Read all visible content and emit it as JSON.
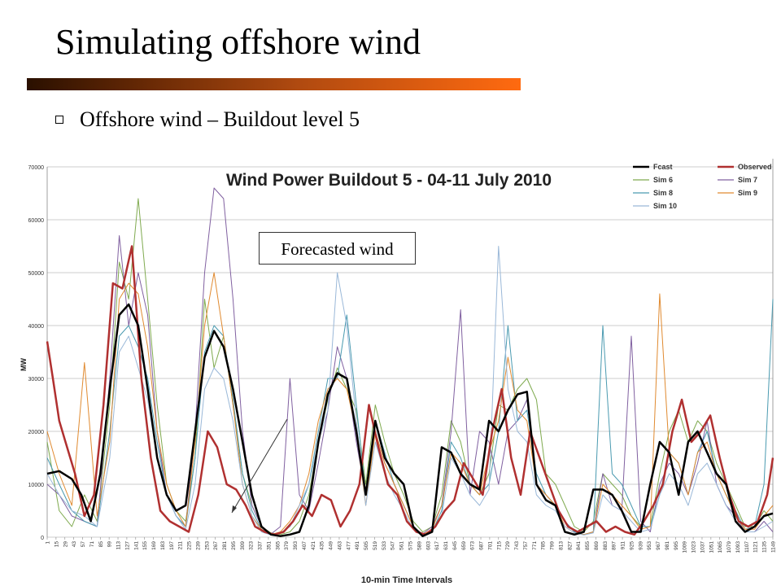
{
  "slide": {
    "title": "Simulating offshore wind",
    "bullet": "Offshore wind – Buildout level 5",
    "callout": "Forecasted wind"
  },
  "chart_data": {
    "type": "line",
    "title": "Wind Power Buildout 5 - 04-11 July 2010",
    "xlabel": "10-min Time Intervals",
    "ylabel": "MW",
    "ylim": [
      0,
      70000
    ],
    "yticks": [
      0,
      10000,
      20000,
      30000,
      40000,
      50000,
      60000,
      70000
    ],
    "xlim": [
      1,
      1149
    ],
    "x_tick_labels": [
      "1",
      "15",
      "29",
      "43",
      "57",
      "71",
      "85",
      "99",
      "113",
      "127",
      "141",
      "155",
      "169",
      "183",
      "197",
      "211",
      "225",
      "239",
      "253",
      "267",
      "281",
      "295",
      "309",
      "323",
      "337",
      "351",
      "365",
      "379",
      "393",
      "407",
      "421",
      "435",
      "449",
      "463",
      "477",
      "491",
      "505",
      "519",
      "533",
      "547",
      "561",
      "575",
      "589",
      "603",
      "617",
      "631",
      "645",
      "659",
      "673",
      "687",
      "701",
      "715",
      "729",
      "743",
      "757",
      "771",
      "785",
      "799",
      "813",
      "827",
      "841",
      "855",
      "869",
      "883",
      "897",
      "911",
      "925",
      "939",
      "953",
      "967",
      "981",
      "995",
      "1009",
      "1023",
      "1037",
      "1051",
      "1065",
      "1079",
      "1093",
      "1107",
      "1121",
      "1135",
      "1149"
    ],
    "grid": true,
    "legend_position": "top-right",
    "series": [
      {
        "name": "Fcast",
        "color": "#000000",
        "width": 2.5,
        "x": [
          1,
          20,
          40,
          55,
          70,
          85,
          100,
          115,
          130,
          145,
          160,
          175,
          190,
          205,
          220,
          235,
          250,
          265,
          280,
          295,
          310,
          325,
          340,
          355,
          370,
          385,
          400,
          415,
          430,
          445,
          460,
          475,
          490,
          505,
          520,
          535,
          550,
          565,
          580,
          595,
          610,
          625,
          640,
          655,
          670,
          685,
          700,
          715,
          730,
          745,
          760,
          775,
          790,
          805,
          820,
          835,
          850,
          865,
          880,
          895,
          910,
          925,
          940,
          955,
          970,
          985,
          1000,
          1015,
          1030,
          1045,
          1060,
          1075,
          1090,
          1105,
          1120,
          1135,
          1149
        ],
        "y": [
          12000,
          12500,
          11000,
          8000,
          3000,
          12000,
          28000,
          42000,
          44000,
          40000,
          28000,
          15000,
          8000,
          5000,
          6000,
          20000,
          34000,
          39000,
          36000,
          28000,
          18000,
          8000,
          2000,
          500,
          200,
          500,
          1000,
          6000,
          18000,
          27000,
          31000,
          30000,
          20000,
          8000,
          22000,
          15000,
          12000,
          10000,
          2000,
          200,
          1000,
          17000,
          16000,
          12000,
          10000,
          9000,
          22000,
          20000,
          24000,
          27000,
          27500,
          10000,
          7000,
          6000,
          1000,
          500,
          1000,
          9000,
          9000,
          8000,
          5000,
          1000,
          1000,
          10000,
          18000,
          16000,
          8000,
          18000,
          20000,
          16000,
          12000,
          10000,
          3000,
          1000,
          2000,
          4000,
          4500
        ]
      },
      {
        "name": "Observed",
        "color": "#b03030",
        "width": 2.5,
        "x": [
          1,
          10,
          20,
          30,
          45,
          60,
          75,
          90,
          105,
          120,
          135,
          150,
          165,
          180,
          195,
          210,
          225,
          240,
          255,
          270,
          285,
          300,
          315,
          330,
          345,
          360,
          375,
          390,
          405,
          420,
          435,
          450,
          465,
          480,
          495,
          510,
          525,
          540,
          555,
          570,
          585,
          600,
          615,
          630,
          645,
          660,
          675,
          690,
          705,
          720,
          735,
          750,
          765,
          780,
          795,
          810,
          825,
          840,
          855,
          870,
          885,
          900,
          915,
          930,
          945,
          960,
          975,
          990,
          1005,
          1020,
          1035,
          1050,
          1065,
          1080,
          1095,
          1110,
          1125,
          1140,
          1149
        ],
        "y": [
          37000,
          30000,
          22000,
          18000,
          12000,
          4000,
          8000,
          25000,
          48000,
          47000,
          55000,
          30000,
          15000,
          5000,
          3000,
          2000,
          1000,
          8000,
          20000,
          17000,
          10000,
          9000,
          6000,
          2000,
          1000,
          500,
          1000,
          3000,
          6000,
          4000,
          8000,
          7000,
          2000,
          5000,
          10000,
          25000,
          17000,
          10000,
          8000,
          3000,
          1000,
          500,
          2000,
          5000,
          7000,
          14000,
          11000,
          8000,
          20000,
          28000,
          15000,
          8000,
          20000,
          15000,
          10000,
          5000,
          2000,
          1000,
          2000,
          3000,
          1000,
          2000,
          1000,
          500,
          3000,
          6000,
          10000,
          20000,
          26000,
          18000,
          20000,
          23000,
          15000,
          8000,
          3000,
          2000,
          3000,
          8000,
          15000
        ]
      },
      {
        "name": "Sim 6",
        "color": "#7faa4f",
        "width": 1,
        "x": [
          1,
          20,
          40,
          60,
          80,
          100,
          115,
          130,
          145,
          160,
          175,
          190,
          205,
          220,
          235,
          250,
          265,
          280,
          295,
          310,
          325,
          340,
          355,
          370,
          385,
          400,
          415,
          430,
          445,
          460,
          475,
          490,
          505,
          520,
          535,
          550,
          565,
          580,
          595,
          610,
          625,
          640,
          655,
          670,
          685,
          700,
          715,
          730,
          745,
          760,
          775,
          790,
          805,
          820,
          835,
          850,
          865,
          880,
          895,
          910,
          925,
          940,
          955,
          970,
          985,
          1000,
          1015,
          1030,
          1045,
          1060,
          1075,
          1090,
          1105,
          1120,
          1135,
          1149
        ],
        "y": [
          18000,
          5000,
          2000,
          8000,
          3000,
          25000,
          52000,
          45000,
          64000,
          45000,
          25000,
          10000,
          5000,
          3000,
          15000,
          45000,
          32000,
          38000,
          25000,
          12000,
          6000,
          2000,
          800,
          500,
          1000,
          3000,
          8000,
          18000,
          26000,
          32000,
          28000,
          24000,
          10000,
          25000,
          18000,
          12000,
          8000,
          3000,
          1000,
          2000,
          8000,
          22000,
          18000,
          10000,
          8000,
          12000,
          25000,
          24000,
          28000,
          30000,
          26000,
          12000,
          10000,
          6000,
          2000,
          1000,
          3000,
          12000,
          10000,
          8000,
          4000,
          2000,
          2000,
          12000,
          20000,
          24000,
          18000,
          22000,
          20000,
          14000,
          10000,
          6000,
          2000,
          2000,
          5000,
          3000
        ]
      },
      {
        "name": "Sim 7",
        "color": "#8060a0",
        "width": 1,
        "x": [
          1,
          20,
          40,
          60,
          80,
          100,
          115,
          130,
          145,
          160,
          175,
          190,
          205,
          220,
          235,
          250,
          265,
          280,
          295,
          310,
          325,
          340,
          355,
          370,
          385,
          400,
          415,
          430,
          445,
          460,
          475,
          490,
          505,
          520,
          535,
          550,
          565,
          580,
          595,
          610,
          625,
          640,
          655,
          670,
          685,
          700,
          715,
          730,
          745,
          760,
          775,
          790,
          805,
          820,
          835,
          850,
          865,
          880,
          895,
          910,
          925,
          940,
          955,
          970,
          985,
          1000,
          1015,
          1030,
          1045,
          1060,
          1075,
          1090,
          1105,
          1120,
          1135,
          1149
        ],
        "y": [
          10000,
          8000,
          4000,
          3000,
          2000,
          30000,
          57000,
          40000,
          50000,
          42000,
          20000,
          8000,
          4000,
          2000,
          20000,
          50000,
          66000,
          64000,
          45000,
          20000,
          6000,
          2000,
          600,
          2000,
          30000,
          8000,
          5000,
          14000,
          24000,
          36000,
          30000,
          18000,
          8000,
          20000,
          14000,
          10000,
          6000,
          2000,
          600,
          2000,
          6000,
          20000,
          43000,
          8000,
          20000,
          18000,
          10000,
          20000,
          22000,
          26000,
          10000,
          8000,
          6000,
          3000,
          1000,
          500,
          1000,
          12000,
          6000,
          5000,
          38000,
          3000,
          1000,
          10000,
          14000,
          12000,
          8000,
          14000,
          22000,
          10000,
          6000,
          4000,
          1000,
          1000,
          3000,
          1000
        ]
      },
      {
        "name": "Sim 8",
        "color": "#4a9ab0",
        "width": 1,
        "x": [
          1,
          20,
          40,
          60,
          80,
          100,
          115,
          130,
          145,
          160,
          175,
          190,
          205,
          220,
          235,
          250,
          265,
          280,
          295,
          310,
          325,
          340,
          355,
          370,
          385,
          400,
          415,
          430,
          445,
          460,
          475,
          490,
          505,
          520,
          535,
          550,
          565,
          580,
          595,
          610,
          625,
          640,
          655,
          670,
          685,
          700,
          715,
          730,
          745,
          760,
          775,
          790,
          805,
          820,
          835,
          850,
          865,
          880,
          895,
          910,
          925,
          940,
          955,
          970,
          985,
          1000,
          1015,
          1030,
          1045,
          1060,
          1075,
          1090,
          1105,
          1120,
          1135,
          1149
        ],
        "y": [
          15000,
          10000,
          5000,
          3000,
          2000,
          20000,
          38000,
          40000,
          36000,
          30000,
          18000,
          8000,
          4000,
          2000,
          15000,
          35000,
          40000,
          38000,
          26000,
          12000,
          5000,
          1500,
          500,
          800,
          2000,
          5000,
          10000,
          20000,
          30000,
          30000,
          42000,
          25000,
          8000,
          22000,
          16000,
          10000,
          6000,
          2000,
          500,
          1000,
          5000,
          18000,
          15000,
          10000,
          8000,
          10000,
          20000,
          40000,
          22000,
          24000,
          12000,
          8000,
          6000,
          3000,
          1000,
          500,
          1000,
          40000,
          12000,
          10000,
          6000,
          2000,
          2000,
          8000,
          16000,
          14000,
          8000,
          16000,
          20000,
          12000,
          8000,
          5000,
          1500,
          2000,
          10000,
          45000
        ]
      },
      {
        "name": "Sim 9",
        "color": "#e08a30",
        "width": 1,
        "x": [
          1,
          20,
          40,
          60,
          80,
          100,
          115,
          130,
          145,
          160,
          175,
          190,
          205,
          220,
          235,
          250,
          265,
          280,
          295,
          310,
          325,
          340,
          355,
          370,
          385,
          400,
          415,
          430,
          445,
          460,
          475,
          490,
          505,
          520,
          535,
          550,
          565,
          580,
          595,
          610,
          625,
          640,
          655,
          670,
          685,
          700,
          715,
          730,
          745,
          760,
          775,
          790,
          805,
          820,
          835,
          850,
          865,
          880,
          895,
          910,
          925,
          940,
          955,
          970,
          985,
          1000,
          1015,
          1030,
          1045,
          1060,
          1075,
          1090,
          1105,
          1120,
          1135,
          1149
        ],
        "y": [
          20000,
          12000,
          6000,
          33000,
          4000,
          18000,
          45000,
          48000,
          46000,
          36000,
          20000,
          10000,
          5000,
          2000,
          18000,
          40000,
          50000,
          38000,
          25000,
          10000,
          4000,
          1500,
          500,
          1000,
          3000,
          6000,
          12000,
          22000,
          28000,
          30000,
          28000,
          20000,
          6000,
          20000,
          14000,
          10000,
          6000,
          2000,
          500,
          1500,
          6000,
          16000,
          14000,
          10000,
          8000,
          16000,
          22000,
          34000,
          24000,
          22000,
          10000,
          8000,
          6000,
          2000,
          800,
          500,
          1000,
          10000,
          8000,
          6000,
          4000,
          1500,
          2000,
          46000,
          16000,
          14000,
          8000,
          16000,
          18000,
          12000,
          8000,
          4000,
          1500,
          1500,
          4000,
          6000
        ]
      },
      {
        "name": "Sim 10",
        "color": "#9ab8d8",
        "width": 1,
        "x": [
          1,
          20,
          40,
          60,
          80,
          100,
          115,
          130,
          145,
          160,
          175,
          190,
          205,
          220,
          235,
          250,
          265,
          280,
          295,
          310,
          325,
          340,
          355,
          370,
          385,
          400,
          415,
          430,
          445,
          460,
          475,
          490,
          505,
          520,
          535,
          550,
          565,
          580,
          595,
          610,
          625,
          640,
          655,
          670,
          685,
          700,
          715,
          730,
          745,
          760,
          775,
          790,
          805,
          820,
          835,
          850,
          865,
          880,
          895,
          910,
          925,
          940,
          955,
          970,
          985,
          1000,
          1015,
          1030,
          1045,
          1060,
          1075,
          1090,
          1105,
          1120,
          1135,
          1149
        ],
        "y": [
          12000,
          8000,
          5000,
          4000,
          2000,
          15000,
          35000,
          38000,
          32000,
          26000,
          15000,
          8000,
          4000,
          1500,
          10000,
          28000,
          32000,
          30000,
          22000,
          10000,
          4000,
          1000,
          400,
          800,
          2000,
          6000,
          10000,
          18000,
          24000,
          50000,
          40000,
          22000,
          6000,
          18000,
          12000,
          8000,
          5000,
          1500,
          400,
          1000,
          4000,
          15000,
          12000,
          8000,
          6000,
          9000,
          55000,
          28000,
          20000,
          18000,
          8000,
          6000,
          5000,
          2000,
          800,
          400,
          800,
          8000,
          6000,
          5000,
          3000,
          1000,
          1500,
          8000,
          12000,
          10000,
          6000,
          12000,
          14000,
          10000,
          6000,
          3000,
          1000,
          1000,
          2000,
          3000
        ]
      }
    ]
  }
}
